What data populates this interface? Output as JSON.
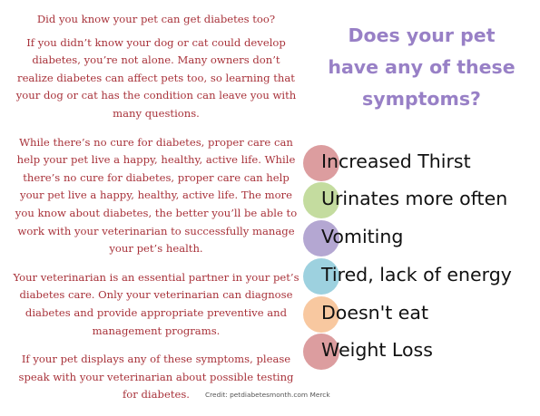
{
  "left_column": {
    "paragraphs": [
      "Did you know your pet can get diabetes too?",
      "If you didn’t know your dog or cat could develop diabetes, you’re not alone. Many owners don’t realize diabetes can affect pets too, so learning that your dog or cat has the condition can leave you with many questions.",
      "While there’s no cure for diabetes, proper care can help your pet live a happy, healthy, active life. While there’s no cure for diabetes, proper care can help your pet live a happy, healthy, active life. The more you know about diabetes, the better you’ll be able to work with your veterinarian to successfully manage your pet’s health.",
      "Your veterinarian is an essential partner in your pet’s diabetes care. Only your veterinarian can diagnose diabetes and provide appropriate preventive and management programs.",
      "If your pet displays any of these symptoms, please speak with your veterinarian about possible testing for diabetes."
    ]
  },
  "right_column": {
    "heading_lines": [
      "Does your pet",
      "have any of these",
      "symptoms?"
    ],
    "symptoms": [
      {
        "label": "Increased Thirst",
        "color": "#dc9d9f"
      },
      {
        "label": "Urinates more often",
        "color": "#c4dc9f"
      },
      {
        "label": "Vomiting",
        "color": "#b4a7d2"
      },
      {
        "label": "Tired, lack of energy",
        "color": "#9dd1df"
      },
      {
        "label": "Doesn't eat",
        "color": "#f8c8a0"
      },
      {
        "label": "Weight Loss",
        "color": "#dc9d9f"
      }
    ]
  },
  "credit": "Credit: petdiabetesmonth.com  Merck",
  "colors": {
    "body_text": "#a8323a",
    "heading": "#9880c6",
    "symptom_text": "#111111"
  }
}
